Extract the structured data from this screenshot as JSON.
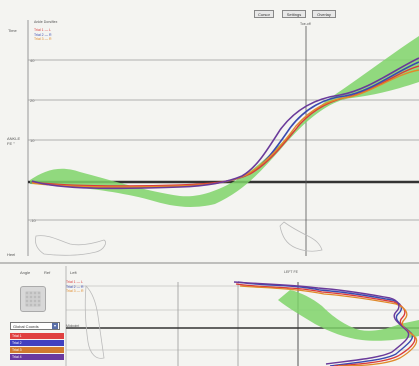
{
  "toolbar": {
    "buttons": [
      {
        "label": "Cursor"
      },
      {
        "label": "Settings"
      },
      {
        "label": "Overlay"
      }
    ]
  },
  "top_chart": {
    "title": "Ankle Dorsiflex",
    "time_label": "Time",
    "y_label": "ANKLE\nFE °",
    "bottom_label": "Heel",
    "event_label": "Toe-off",
    "legend": [
      "Trial 1 — L",
      "Trial 2 — R",
      "Trial 3 — R"
    ],
    "ticks": [
      "40",
      "30",
      "20",
      "10",
      "0",
      "-10",
      "-20"
    ]
  },
  "bottom_panel": {
    "labels": [
      "Angle",
      "Ref",
      "Left"
    ],
    "center_label": "LEFT FE",
    "legend": [
      "Trial 1 — L",
      "Trial 2 — R",
      "Trial 3 — R"
    ],
    "marker_label": "Midpoint",
    "dropdown": "Global Coords",
    "color_rows": [
      {
        "label": "Trial 1",
        "color": "#e04040"
      },
      {
        "label": "Trial 2",
        "color": "#4040c0"
      },
      {
        "label": "Trial 3",
        "color": "#d07a30"
      },
      {
        "label": "Trial 4",
        "color": "#6a3aa0"
      }
    ]
  },
  "colors": {
    "band": "#7fd46a",
    "red": "#d93a3a",
    "blue": "#3a4ab0",
    "orange": "#e08a2a",
    "purple": "#6a3a9a"
  }
}
